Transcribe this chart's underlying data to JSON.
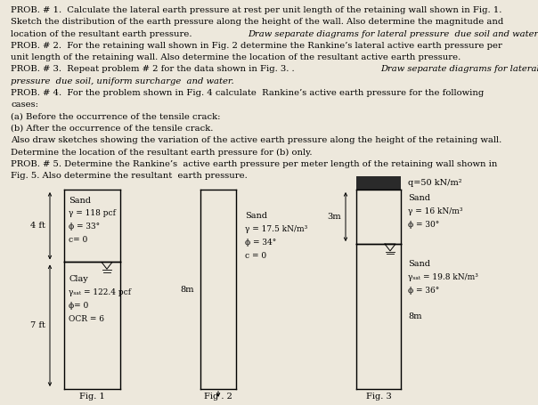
{
  "title_text": [
    [
      "PROB. # 1.  Calculate the lateral earth pressure at rest per unit length of the retaining wall shown in Fig. 1.",
      "normal"
    ],
    [
      "Sketch the distribution of the earth pressure along the height of the wall. Also determine the magnitude and",
      "normal"
    ],
    [
      "location of the resultant earth pressure. ",
      "normal"
    ],
    [
      "Draw separate diagrams for lateral pressure  due soil and water.",
      "italic"
    ],
    [
      "PROB. # 2.  For the retaining wall shown in Fig. 2 determine the Rankine’s lateral active earth pressure per",
      "normal"
    ],
    [
      "unit length of the retaining wall. Also determine the location of the resultant active earth pressure.",
      "normal"
    ],
    [
      "PROB. # 3.  Repeat problem # 2 for the data shown in Fig. 3. . ",
      "normal"
    ],
    [
      "Draw separate diagrams for lateral",
      "italic"
    ],
    [
      "pressure  due soil, uniform surcharge  and water.",
      "italic"
    ],
    [
      "PROB. # 4.  For the problem shown in Fig. 4 calculate  Rankine’s active earth pressure for the following",
      "normal"
    ],
    [
      "cases:",
      "normal"
    ],
    [
      "(a) Before the occurrence of the tensile crack:",
      "normal"
    ],
    [
      "(b) After the occurrence of the tensile crack.",
      "normal"
    ],
    [
      "Also draw sketches showing the variation of the active earth pressure along the height of the retaining wall.",
      "normal"
    ],
    [
      "Determine the location of the resultant earth pressure for (b) only.",
      "normal"
    ],
    [
      "PROB. # 5. Determine the Rankine’s  active earth pressure per meter length of the retaining wall shown in",
      "normal"
    ],
    [
      "Fig. 5. Also determine the resultant  earth pressure.",
      "normal"
    ]
  ],
  "bg_color": "#ede8dc",
  "font_size_body": 7.2,
  "font_size_fig": 7.0,
  "fig_width": 6.04,
  "fig_height": 4.55
}
